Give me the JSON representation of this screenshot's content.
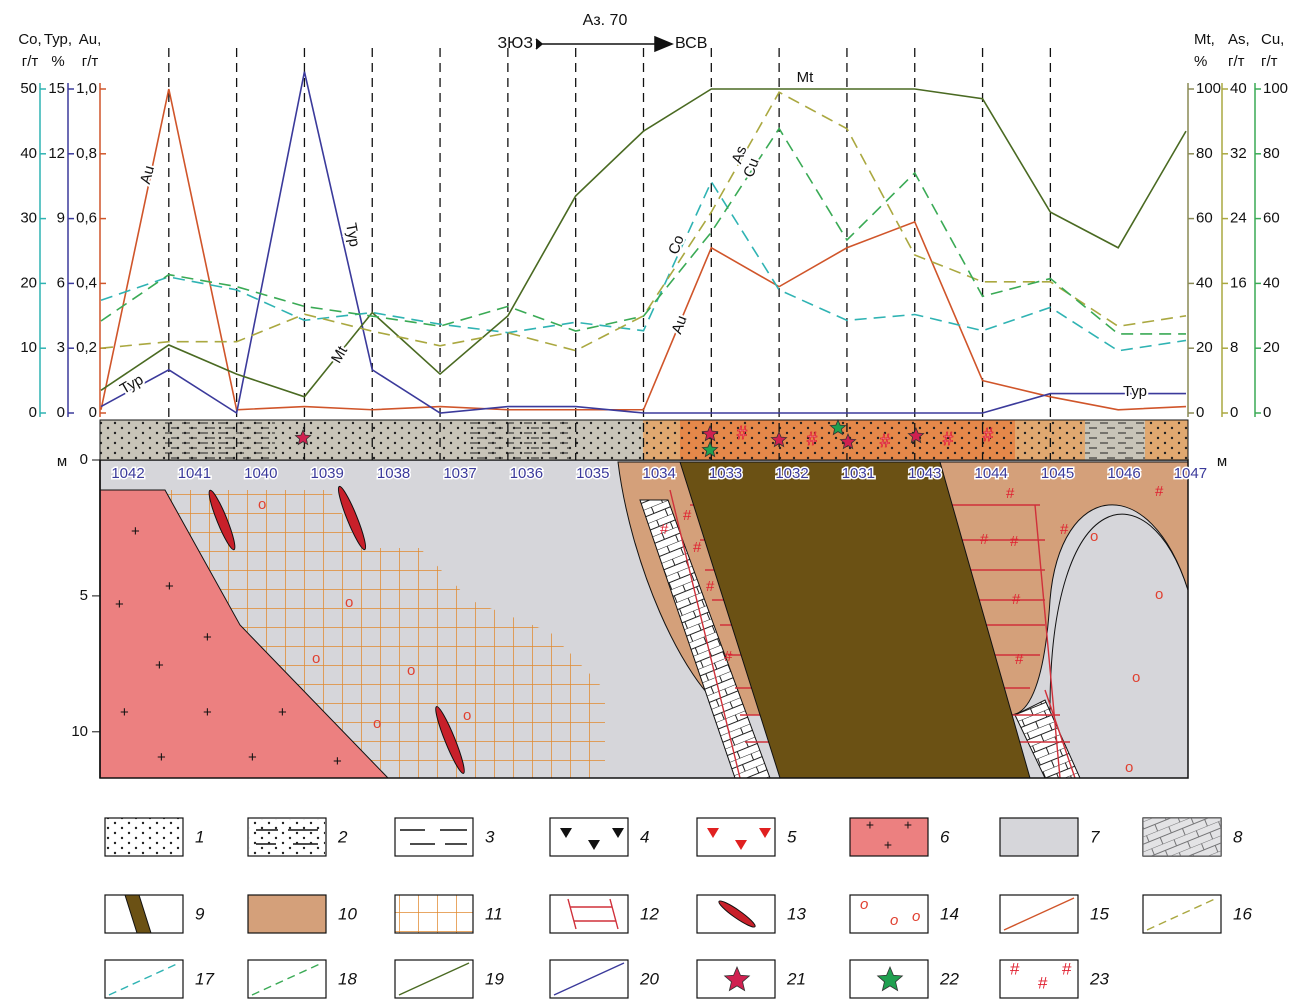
{
  "chart_data": {
    "type": "line",
    "direction": {
      "left": "ЗЮЗ",
      "azimuth": "Аз. 70",
      "right": "ВСВ"
    },
    "categories": [
      "1042",
      "1041",
      "1040",
      "1039",
      "1038",
      "1037",
      "1036",
      "1035",
      "1034",
      "1033",
      "1032",
      "1031",
      "1043",
      "1044",
      "1045",
      "1046",
      "1047"
    ],
    "axes": [
      {
        "name": "Co,",
        "unit": "г/т",
        "side": "left",
        "color": "#2fb3b3",
        "ylim": [
          0,
          50
        ],
        "yticks": [
          0,
          10,
          20,
          30,
          40,
          50
        ]
      },
      {
        "name": "Тур,",
        "unit": "%",
        "side": "left",
        "color": "#3b3a9b",
        "ylim": [
          0,
          15
        ],
        "yticks": [
          0,
          3,
          6,
          9,
          12,
          15
        ]
      },
      {
        "name": "Au,",
        "unit": "г/т",
        "side": "left",
        "color": "#d0552a",
        "ylim": [
          0,
          1.0
        ],
        "yticks": [
          0,
          {
            "value": 0.2,
            "label": "0,2"
          },
          {
            "value": 0.4,
            "label": "0,4"
          },
          {
            "value": 0.6,
            "label": "0,6"
          },
          {
            "value": 0.8,
            "label": "0,8"
          },
          {
            "value": 1.0,
            "label": "1,0"
          }
        ]
      },
      {
        "name": "Mt,",
        "unit": "%",
        "side": "right",
        "color": "#8a8a55",
        "ylim": [
          0,
          100
        ],
        "yticks": [
          0,
          20,
          40,
          60,
          80,
          100
        ]
      },
      {
        "name": "As,",
        "unit": "г/т",
        "side": "right",
        "color": "#aaa840",
        "ylim": [
          0,
          40
        ],
        "yticks": [
          0,
          8,
          16,
          24,
          32,
          40
        ]
      },
      {
        "name": "Cu,",
        "unit": "г/т",
        "side": "right",
        "color": "#3aaa55",
        "ylim": [
          0,
          100
        ],
        "yticks": [
          0,
          20,
          40,
          60,
          80,
          100
        ]
      }
    ],
    "series": [
      {
        "name": "Au",
        "axis": 2,
        "color": "#d0552a",
        "dashed": false,
        "values": [
          0.01,
          1.0,
          0.01,
          0.02,
          0.01,
          0.02,
          0.01,
          0.01,
          0.01,
          0.51,
          0.39,
          0.51,
          0.59,
          0.1,
          0.05,
          0.01,
          0.02
        ]
      },
      {
        "name": "Тур",
        "axis": 1,
        "color": "#3b3a9b",
        "dashed": false,
        "values": [
          0.3,
          2,
          0,
          15.8,
          2,
          0,
          0.3,
          0.3,
          0,
          0,
          0,
          0,
          0,
          0,
          0.9,
          0.9,
          0.9
        ]
      },
      {
        "name": "Co",
        "axis": 0,
        "color": "#2fb3b3",
        "dashed": true,
        "values": [
          17.4,
          21,
          19,
          14.3,
          15.5,
          13.7,
          12.4,
          14,
          12.7,
          35.7,
          19,
          14.3,
          15.2,
          12.7,
          16.3,
          9.6,
          11.2
        ]
      },
      {
        "name": "Mt",
        "axis": 3,
        "color": "#4a6a22",
        "dashed": false,
        "values": [
          7,
          21,
          12,
          5,
          31,
          12,
          30,
          67,
          87,
          100,
          100,
          100,
          100,
          97,
          62,
          51,
          87
        ]
      },
      {
        "name": "As",
        "axis": 4,
        "color": "#aaa840",
        "dashed": true,
        "values": [
          8,
          8.8,
          8.8,
          12.2,
          10.1,
          8.3,
          9.9,
          7.7,
          12,
          24.8,
          39.6,
          35.1,
          19.5,
          16.2,
          16.2,
          10.7,
          12
        ]
      },
      {
        "name": "Cu",
        "axis": 5,
        "color": "#3aaa55",
        "dashed": true,
        "values": [
          28.4,
          42.7,
          39,
          32.9,
          29.9,
          26.8,
          32.9,
          25.3,
          29.9,
          55.8,
          87.8,
          53.4,
          74.1,
          36,
          41.5,
          24.4,
          24.4
        ]
      }
    ],
    "depth_axis": {
      "unit": "м",
      "ylim": [
        0,
        11.7
      ],
      "yticks": [
        0,
        5,
        10
      ]
    },
    "legend": [
      "1",
      "2",
      "3",
      "4",
      "5",
      "6",
      "7",
      "8",
      "9",
      "10",
      "11",
      "12",
      "13",
      "14",
      "15",
      "16",
      "17",
      "18",
      "19",
      "20",
      "21",
      "22",
      "23"
    ]
  }
}
